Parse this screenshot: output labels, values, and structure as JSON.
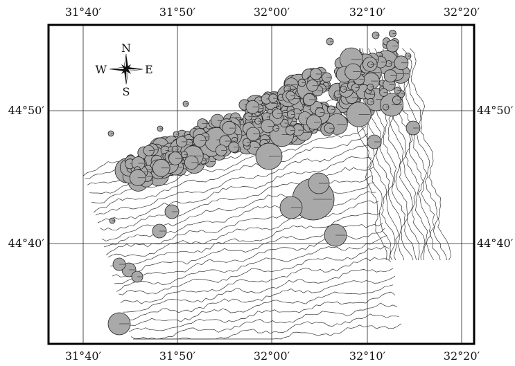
{
  "map": {
    "longitude_labels": [
      "31°40′",
      "31°50′",
      "32°00′",
      "32°10′",
      "32°20′"
    ],
    "latitude_labels": [
      "44°50′",
      "44°40′"
    ],
    "compass": {
      "north": "N",
      "south": "S",
      "east": "E",
      "west": "W"
    },
    "style": {
      "marker_fill": "#a9a9a9",
      "marker_stroke": "#222222",
      "contour_stroke": "#333333",
      "grid_stroke": "#222222",
      "frame_stroke": "#000000"
    }
  }
}
